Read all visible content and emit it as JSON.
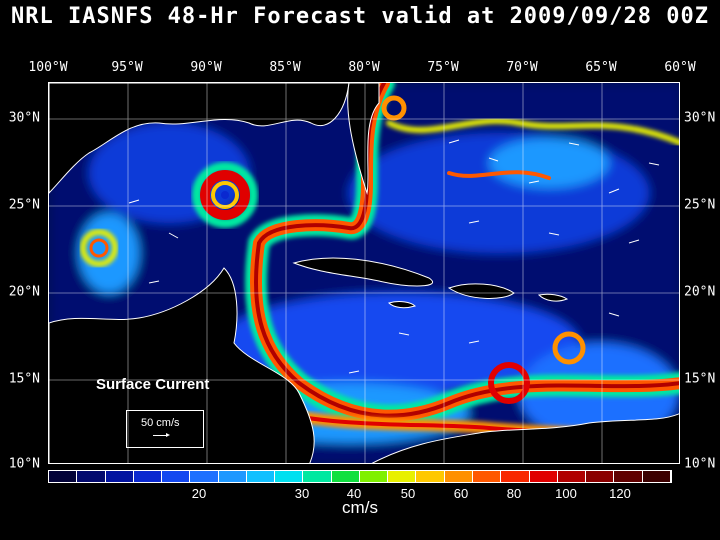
{
  "title": "NRL IASNFS  48-Hr Forecast valid at 2009/09/28 00Z",
  "lon_labels": [
    "100°W",
    "95°W",
    "90°W",
    "85°W",
    "80°W",
    "75°W",
    "70°W",
    "65°W",
    "60°W"
  ],
  "lat_labels": [
    "30°N",
    "25°N",
    "20°N",
    "15°N",
    "10°N"
  ],
  "map_label": "Surface Current",
  "reference_vector": "50 cm/s",
  "colorbar": {
    "ticks": [
      "20",
      "30",
      "40",
      "50",
      "60",
      "80",
      "100",
      "120"
    ],
    "unit": "cm/s",
    "colors": [
      "#020238",
      "#030a6e",
      "#0314a0",
      "#0a28d0",
      "#1448f0",
      "#1e70ff",
      "#1e98ff",
      "#10c0ff",
      "#00e0f0",
      "#00e8a0",
      "#10e040",
      "#80f000",
      "#e8f000",
      "#ffc800",
      "#ff9000",
      "#ff5800",
      "#f82800",
      "#e00000",
      "#b00000",
      "#8a0000",
      "#600000",
      "#3c0000"
    ]
  },
  "land_color": "#000000",
  "ocean_colors": [
    "#00064a",
    "#0a28d0",
    "#1e98ff",
    "#00e8a0",
    "#e8f000",
    "#ff5800",
    "#e00000"
  ]
}
